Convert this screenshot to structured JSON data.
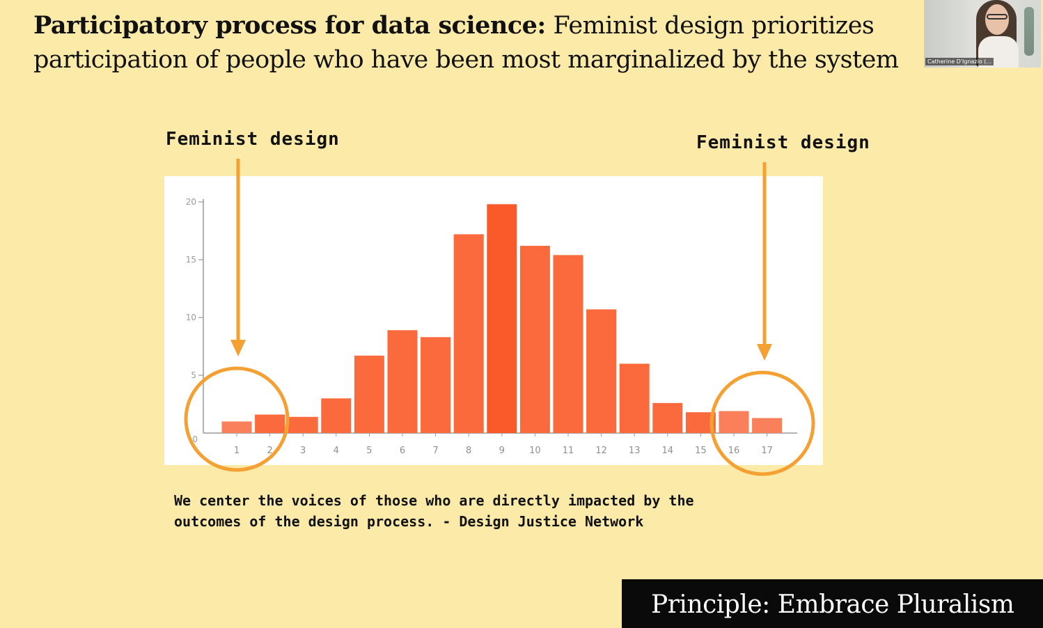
{
  "slide": {
    "title_bold": "Participatory process for data science:",
    "title_rest": " Feminist design prioritizes participation of people who have been most marginalized by the system",
    "annotation_left": "Feminist design",
    "annotation_right": "Feminist design",
    "quote_line1": "We center the voices of those who are directly impacted by the",
    "quote_line2": "outcomes of the design process. - Design Justice Network",
    "principle": "Principle: Embrace Pluralism"
  },
  "webcam": {
    "participant_name": "Catherine D'Ignazio (..."
  },
  "colors": {
    "background": "#fbeaa8",
    "bar": "#fa6a3c",
    "bar_center": "#fa5a2a",
    "bar_tail": "#f9805a",
    "annotation": "#f5a033",
    "banner": "#0a0a0a"
  },
  "chart_data": {
    "type": "bar",
    "categories": [
      "1",
      "2",
      "3",
      "4",
      "5",
      "6",
      "7",
      "8",
      "9",
      "10",
      "11",
      "12",
      "13",
      "14",
      "15",
      "16",
      "17"
    ],
    "values": [
      1.0,
      1.6,
      1.4,
      3.0,
      6.7,
      8.9,
      8.3,
      17.2,
      19.8,
      16.2,
      15.4,
      10.7,
      6.0,
      2.6,
      1.8,
      1.9,
      1.3
    ],
    "ylim": [
      0,
      20
    ],
    "yticks": [
      0,
      5,
      10,
      15,
      20
    ],
    "highlighted_categories": [
      [
        "1",
        "2"
      ],
      [
        "16",
        "17"
      ]
    ],
    "grid": false,
    "legend": "none"
  }
}
